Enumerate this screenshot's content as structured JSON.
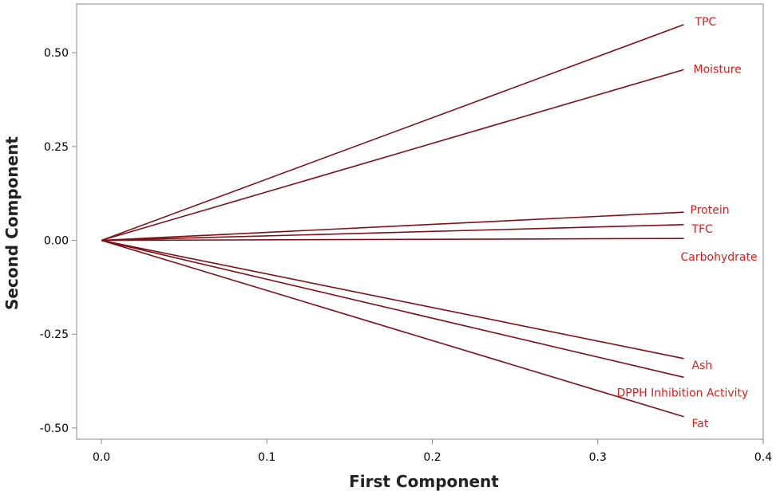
{
  "chart_data": {
    "type": "line",
    "subtype": "loading-plot",
    "title": "",
    "xlabel": "First Component",
    "ylabel": "Second Component",
    "xlim": [
      -0.015,
      0.4
    ],
    "ylim": [
      -0.53,
      0.63
    ],
    "xticks": [
      "0.0",
      "0.1",
      "0.2",
      "0.3",
      "0.4"
    ],
    "xtick_values": [
      0.0,
      0.1,
      0.2,
      0.3,
      0.4
    ],
    "yticks": [
      "0.50",
      "0.25",
      "0.00",
      "-0.25",
      "-0.50"
    ],
    "ytick_values": [
      0.5,
      0.25,
      0.0,
      -0.25,
      -0.5
    ],
    "grid": false,
    "line_color": "#7f0f16",
    "label_color": "#d81f1f",
    "series": [
      {
        "name": "TPC",
        "x": [
          0.0,
          0.352
        ],
        "y": [
          0.0,
          0.575
        ]
      },
      {
        "name": "Moisture",
        "x": [
          0.0,
          0.352
        ],
        "y": [
          0.0,
          0.455
        ]
      },
      {
        "name": "Protein",
        "x": [
          0.0,
          0.352
        ],
        "y": [
          0.0,
          0.075
        ]
      },
      {
        "name": "TFC",
        "x": [
          0.0,
          0.352
        ],
        "y": [
          0.0,
          0.042
        ]
      },
      {
        "name": "Carbohydrate",
        "x": [
          0.0,
          0.352
        ],
        "y": [
          0.0,
          0.005
        ]
      },
      {
        "name": "Ash",
        "x": [
          0.0,
          0.352
        ],
        "y": [
          0.0,
          -0.315
        ]
      },
      {
        "name": "DPPH Inhibition Activity",
        "x": [
          0.0,
          0.352
        ],
        "y": [
          0.0,
          -0.365
        ]
      },
      {
        "name": "Fat",
        "x": [
          0.0,
          0.352
        ],
        "y": [
          0.0,
          -0.47
        ]
      }
    ]
  }
}
